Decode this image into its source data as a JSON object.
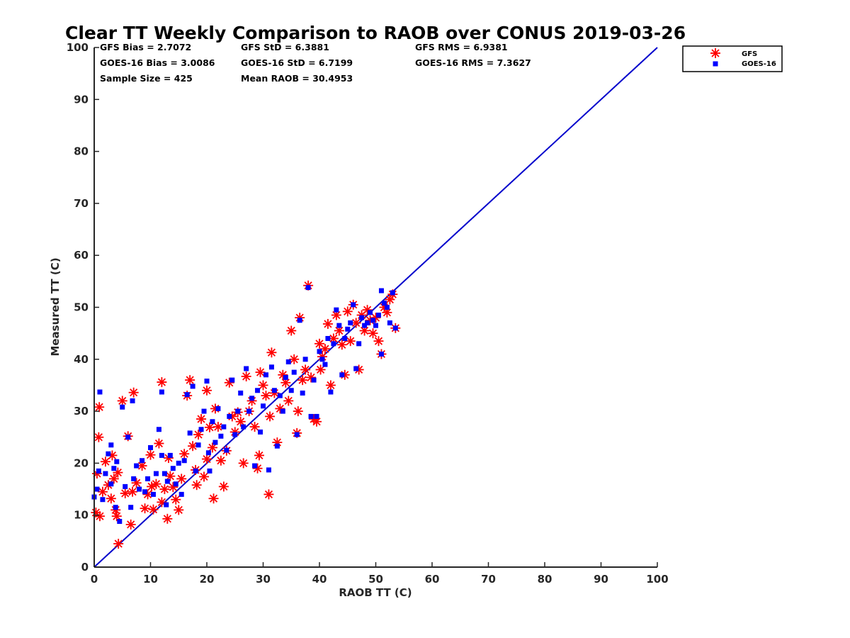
{
  "chart_data": {
    "type": "scatter",
    "title": "Clear TT Weekly Comparison to RAOB over CONUS 2019-03-26",
    "xlabel": "RAOB TT (C)",
    "ylabel": "Measured TT (C)",
    "xlim": [
      0,
      100
    ],
    "ylim": [
      0,
      100
    ],
    "xticks": [
      "0",
      "10",
      "20",
      "30",
      "40",
      "50",
      "60",
      "70",
      "80",
      "90",
      "100"
    ],
    "yticks": [
      "0",
      "10",
      "20",
      "30",
      "40",
      "50",
      "60",
      "70",
      "80",
      "90",
      "100"
    ],
    "grid": false,
    "legend_position": "outside-top-right",
    "reference_line": {
      "name": "1:1 line",
      "x": [
        0,
        100
      ],
      "y": [
        0,
        100
      ],
      "color": "#0000cc"
    },
    "stats": {
      "row1": [
        "GFS Bias = 2.7072",
        "GFS StD = 6.3881",
        "GFS RMS = 6.9381"
      ],
      "row2": [
        "GOES-16 Bias = 3.0086",
        "GOES-16 StD = 6.7199",
        "GOES-16 RMS = 7.3627"
      ],
      "row3": [
        "Sample Size = 425",
        "Mean RAOB = 30.4953"
      ]
    },
    "series": [
      {
        "name": "GFS",
        "marker": "asterisk",
        "color": "#ff0000",
        "points": [
          [
            0.3,
            10.5
          ],
          [
            0.5,
            18
          ],
          [
            0.8,
            25
          ],
          [
            0.9,
            30.8
          ],
          [
            1.0,
            9.8
          ],
          [
            1.5,
            14.5
          ],
          [
            2,
            20.3
          ],
          [
            2.5,
            15.8
          ],
          [
            3,
            13.2
          ],
          [
            3.2,
            21.5
          ],
          [
            3.5,
            17
          ],
          [
            3.8,
            11
          ],
          [
            4,
            9.8
          ],
          [
            4.2,
            18.2
          ],
          [
            4.3,
            4.5
          ],
          [
            5,
            32
          ],
          [
            5.5,
            14.2
          ],
          [
            6,
            25.2
          ],
          [
            6.5,
            8.2
          ],
          [
            6.8,
            14.5
          ],
          [
            7,
            33.6
          ],
          [
            7.5,
            16.2
          ],
          [
            8.5,
            19.5
          ],
          [
            9,
            11.3
          ],
          [
            9.5,
            14
          ],
          [
            10,
            21.6
          ],
          [
            10.2,
            15.5
          ],
          [
            10.5,
            11.1
          ],
          [
            11,
            16
          ],
          [
            11.5,
            23.8
          ],
          [
            12,
            35.6
          ],
          [
            12,
            12.5
          ],
          [
            12.5,
            15
          ],
          [
            13,
            9.3
          ],
          [
            13.2,
            21
          ],
          [
            13.5,
            17.5
          ],
          [
            14,
            15.4
          ],
          [
            14.5,
            13
          ],
          [
            15,
            11
          ],
          [
            15.5,
            17
          ],
          [
            16,
            21.8
          ],
          [
            16.5,
            33
          ],
          [
            17,
            36
          ],
          [
            17.5,
            23.3
          ],
          [
            18,
            18.7
          ],
          [
            18.2,
            15.8
          ],
          [
            18.5,
            25.5
          ],
          [
            19,
            28.5
          ],
          [
            19.5,
            17.4
          ],
          [
            20,
            34
          ],
          [
            20,
            20.8
          ],
          [
            20.5,
            26.9
          ],
          [
            21,
            23
          ],
          [
            21.2,
            13.2
          ],
          [
            21.5,
            30.5
          ],
          [
            22,
            27
          ],
          [
            22.5,
            20.5
          ],
          [
            23,
            15.5
          ],
          [
            23.5,
            22.4
          ],
          [
            24,
            35.5
          ],
          [
            24.5,
            29
          ],
          [
            25,
            26
          ],
          [
            25.5,
            29.8
          ],
          [
            26,
            28
          ],
          [
            26.5,
            20
          ],
          [
            27,
            36.7
          ],
          [
            27.5,
            30
          ],
          [
            28,
            32
          ],
          [
            28.5,
            27
          ],
          [
            29,
            19
          ],
          [
            29.3,
            21.5
          ],
          [
            29.5,
            37.5
          ],
          [
            30,
            35
          ],
          [
            30.5,
            33
          ],
          [
            31,
            14
          ],
          [
            31.2,
            29
          ],
          [
            31.5,
            41.3
          ],
          [
            32,
            33.5
          ],
          [
            32.5,
            24
          ],
          [
            33,
            30.5
          ],
          [
            33.5,
            37
          ],
          [
            34,
            35.5
          ],
          [
            34.5,
            32
          ],
          [
            35,
            45.5
          ],
          [
            35.5,
            40
          ],
          [
            36,
            25.8
          ],
          [
            36.2,
            30
          ],
          [
            36.5,
            48
          ],
          [
            37,
            36
          ],
          [
            37.5,
            38
          ],
          [
            38,
            54.2
          ],
          [
            38.5,
            36.5
          ],
          [
            39,
            28.5
          ],
          [
            39.5,
            28
          ],
          [
            40,
            43
          ],
          [
            40.2,
            38
          ],
          [
            40.5,
            40.5
          ],
          [
            41,
            42
          ],
          [
            41.5,
            46.8
          ],
          [
            42,
            35
          ],
          [
            42.5,
            44
          ],
          [
            43,
            48.5
          ],
          [
            43.5,
            45.5
          ],
          [
            44,
            42.8
          ],
          [
            44.5,
            37
          ],
          [
            45,
            49.2
          ],
          [
            45.5,
            43.5
          ],
          [
            46,
            50.5
          ],
          [
            46.5,
            47
          ],
          [
            47,
            38
          ],
          [
            47.5,
            48.5
          ],
          [
            48,
            45.5
          ],
          [
            48.5,
            49.5
          ],
          [
            49,
            47.5
          ],
          [
            49.5,
            45
          ],
          [
            50,
            48
          ],
          [
            50.5,
            43.5
          ],
          [
            51,
            41
          ],
          [
            51.5,
            50
          ],
          [
            52,
            49
          ],
          [
            52.5,
            51.5
          ],
          [
            53,
            52.5
          ],
          [
            53.5,
            46
          ]
        ]
      },
      {
        "name": "GOES-16",
        "marker": "square",
        "color": "#0000ff",
        "points": [
          [
            0,
            13.5
          ],
          [
            0.5,
            15
          ],
          [
            0.8,
            18.5
          ],
          [
            1,
            33.7
          ],
          [
            1.5,
            13
          ],
          [
            2,
            18
          ],
          [
            2.5,
            21.8
          ],
          [
            3,
            23.5
          ],
          [
            3,
            16
          ],
          [
            3.5,
            19
          ],
          [
            3.8,
            11.5
          ],
          [
            4,
            20.3
          ],
          [
            4.5,
            8.8
          ],
          [
            5,
            30.8
          ],
          [
            5.5,
            15.5
          ],
          [
            6,
            25
          ],
          [
            6.5,
            11.5
          ],
          [
            6.8,
            32
          ],
          [
            7,
            17
          ],
          [
            7.5,
            19.5
          ],
          [
            8,
            15
          ],
          [
            8.5,
            20.5
          ],
          [
            9,
            14.5
          ],
          [
            9.5,
            17
          ],
          [
            10,
            23
          ],
          [
            10.5,
            14
          ],
          [
            11,
            18
          ],
          [
            11.5,
            26.5
          ],
          [
            12,
            21.5
          ],
          [
            12,
            33.7
          ],
          [
            12.5,
            18
          ],
          [
            12.8,
            12
          ],
          [
            13,
            16.5
          ],
          [
            13.5,
            21.5
          ],
          [
            14,
            19
          ],
          [
            14.5,
            16
          ],
          [
            15,
            20
          ],
          [
            15.5,
            14
          ],
          [
            16,
            20.5
          ],
          [
            16.5,
            33.2
          ],
          [
            17,
            25.8
          ],
          [
            17.5,
            34.8
          ],
          [
            18,
            18.5
          ],
          [
            18.5,
            23.5
          ],
          [
            19,
            26.5
          ],
          [
            19.5,
            30
          ],
          [
            20,
            35.8
          ],
          [
            20.3,
            22
          ],
          [
            20.5,
            18.5
          ],
          [
            21,
            28
          ],
          [
            21.5,
            24
          ],
          [
            22,
            30.5
          ],
          [
            22.5,
            25.2
          ],
          [
            23,
            27
          ],
          [
            23.5,
            22.5
          ],
          [
            24,
            29
          ],
          [
            24.5,
            36
          ],
          [
            25,
            25.5
          ],
          [
            25.5,
            30
          ],
          [
            26,
            33.5
          ],
          [
            26.5,
            27
          ],
          [
            27,
            38.2
          ],
          [
            27.5,
            30
          ],
          [
            28,
            32.5
          ],
          [
            28.5,
            19.5
          ],
          [
            29,
            34
          ],
          [
            29.5,
            26
          ],
          [
            30,
            31
          ],
          [
            30.5,
            37
          ],
          [
            31,
            18.7
          ],
          [
            31.5,
            38.5
          ],
          [
            32,
            34
          ],
          [
            32.5,
            23.3
          ],
          [
            33,
            33
          ],
          [
            33.5,
            30
          ],
          [
            34,
            36.5
          ],
          [
            34.5,
            39.5
          ],
          [
            35,
            34
          ],
          [
            35.5,
            37.5
          ],
          [
            36,
            25.5
          ],
          [
            36.5,
            47.5
          ],
          [
            37,
            33.5
          ],
          [
            37.5,
            40
          ],
          [
            38,
            53.8
          ],
          [
            38.5,
            29
          ],
          [
            39,
            36
          ],
          [
            39.5,
            29
          ],
          [
            40,
            41.5
          ],
          [
            40.5,
            40
          ],
          [
            41,
            39
          ],
          [
            41.5,
            44
          ],
          [
            42,
            33.7
          ],
          [
            42.5,
            43
          ],
          [
            43,
            49.5
          ],
          [
            43.5,
            46.5
          ],
          [
            44,
            37
          ],
          [
            44.5,
            44
          ],
          [
            45,
            45.8
          ],
          [
            45.5,
            47
          ],
          [
            46,
            50.5
          ],
          [
            46.5,
            38.2
          ],
          [
            47,
            43
          ],
          [
            47.5,
            48
          ],
          [
            48,
            46.5
          ],
          [
            48.5,
            47
          ],
          [
            49,
            49
          ],
          [
            49.5,
            47.5
          ],
          [
            50,
            46.5
          ],
          [
            50.5,
            48.5
          ],
          [
            51,
            41
          ],
          [
            51,
            53.2
          ],
          [
            51.5,
            50.8
          ],
          [
            52,
            50
          ],
          [
            52.5,
            47
          ],
          [
            53,
            52.8
          ],
          [
            53.5,
            46
          ]
        ]
      }
    ]
  }
}
